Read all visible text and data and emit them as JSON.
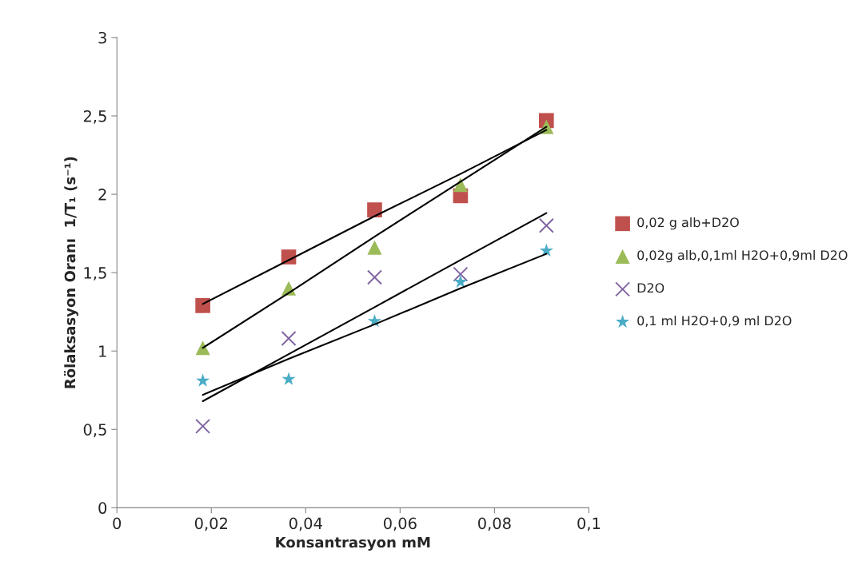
{
  "chart_data": {
    "type": "scatter",
    "xlabel": "Konsantrasyon mM",
    "ylabel": "Rölaksasyon Oranı  1/T₁ (s⁻¹)",
    "x": [
      0.0182,
      0.0364,
      0.0546,
      0.0728,
      0.091
    ],
    "xlim": [
      0,
      0.1
    ],
    "xticks": [
      0,
      {
        "value": 0.02,
        "label": "0,02"
      },
      {
        "value": 0.04,
        "label": "0,04"
      },
      {
        "value": 0.06,
        "label": "0,06"
      },
      {
        "value": 0.08,
        "label": "0,08"
      },
      {
        "value": 0.1,
        "label": "0,1"
      }
    ],
    "ylim": [
      0,
      3
    ],
    "yticks": [
      0,
      {
        "value": 0.5,
        "label": "0,5"
      },
      1,
      {
        "value": 1.5,
        "label": "1,5"
      },
      2,
      {
        "value": 2.5,
        "label": "2,5"
      },
      3
    ],
    "grid": false,
    "legend": "right",
    "series": [
      {
        "name": "0,02 g alb+D2O",
        "color": "#c0504d",
        "marker": "square",
        "values": [
          1.29,
          1.6,
          1.9,
          1.99,
          2.47
        ]
      },
      {
        "name": "0,02g alb,0,1ml H2O+0,9ml D2O",
        "color": "#9bbb59",
        "marker": "triangle",
        "values": [
          1.02,
          1.4,
          1.66,
          2.06,
          2.43
        ]
      },
      {
        "name": "D2O",
        "color": "#8064a2",
        "marker": "cross",
        "values": [
          0.52,
          1.08,
          1.47,
          1.49,
          1.8
        ]
      },
      {
        "name": "0,1 ml H2O+0,9 ml D2O",
        "color": "#4bacc6",
        "marker": "star",
        "values": [
          0.81,
          0.82,
          1.19,
          1.44,
          1.64
        ]
      },
      {
        "type": "line",
        "color": "#000000",
        "marker": "none",
        "values": [
          1.3,
          1.58,
          1.86,
          2.13,
          2.41
        ]
      },
      {
        "type": "line",
        "color": "#000000",
        "marker": "none",
        "values": [
          1.02,
          1.37,
          1.73,
          2.08,
          2.43
        ]
      },
      {
        "type": "line",
        "color": "#000000",
        "marker": "none",
        "values": [
          0.68,
          0.98,
          1.28,
          1.58,
          1.88
        ]
      },
      {
        "type": "line",
        "color": "#000000",
        "marker": "none",
        "values": [
          0.72,
          0.95,
          1.17,
          1.4,
          1.62
        ]
      }
    ]
  }
}
